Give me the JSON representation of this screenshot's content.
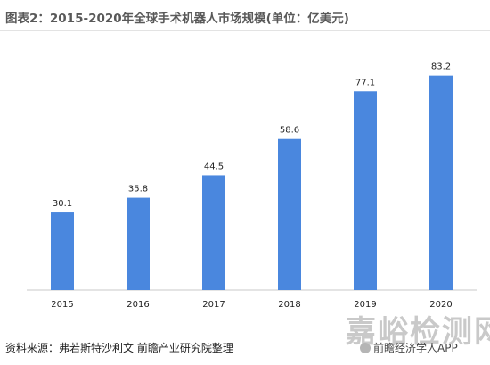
{
  "page": {
    "title": "图表2：2015-2020年全球手术机器人市场规模(单位：亿美元)",
    "source": "资料来源：弗若斯特沙利文 前瞻产业研究院整理",
    "watermark": "嘉峪检测网",
    "credit": "前瞻经济学人APP"
  },
  "colors": {
    "bar": "#4a87de",
    "axis": "#c9c9c9",
    "label": "#222222"
  },
  "chart_data": {
    "type": "bar",
    "title": "图表2：2015-2020年全球手术机器人市场规模(单位：亿美元)",
    "categories": [
      "2015",
      "2016",
      "2017",
      "2018",
      "2019",
      "2020"
    ],
    "values": [
      30.1,
      35.8,
      44.5,
      58.6,
      77.1,
      83.2
    ],
    "data_labels": [
      "30.1",
      "35.8",
      "44.5",
      "58.6",
      "77.1",
      "83.2"
    ],
    "xlabel": "",
    "ylabel": "",
    "ylim": [
      0,
      90
    ],
    "grid": false,
    "legend": "none"
  }
}
